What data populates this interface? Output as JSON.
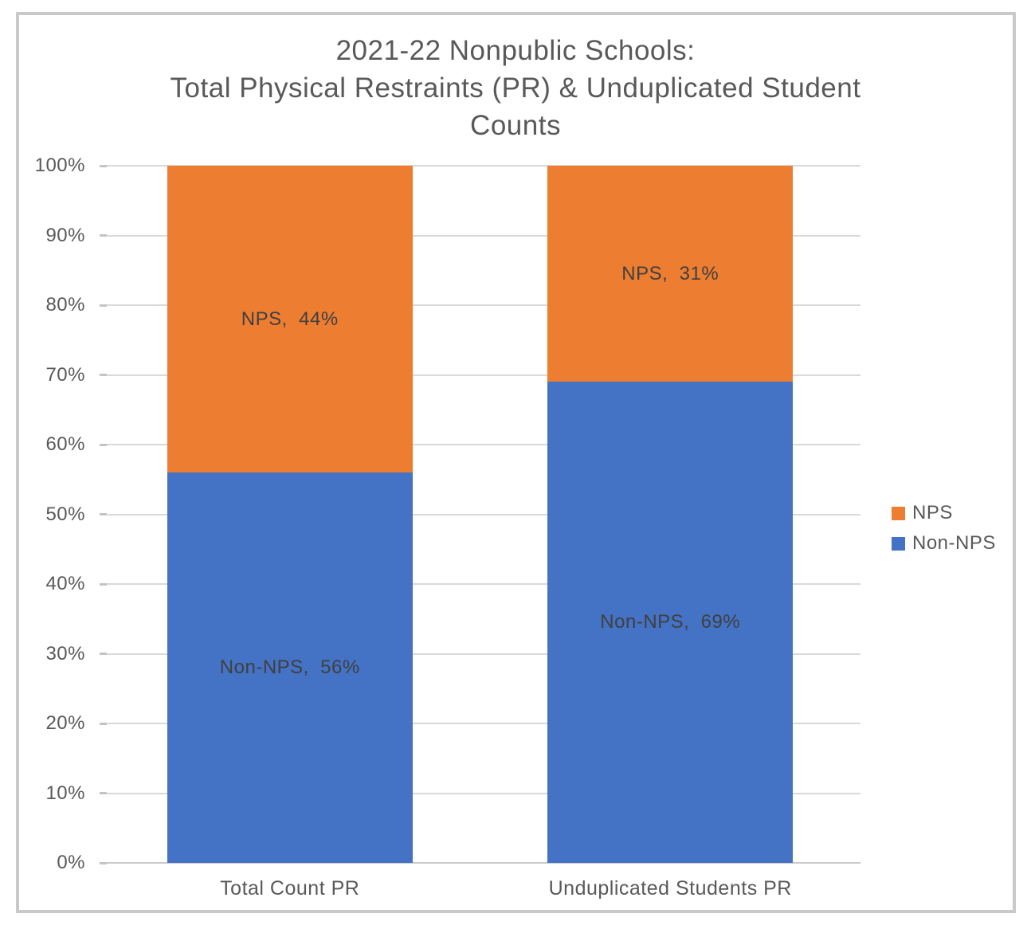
{
  "title": {
    "lines": [
      "2021-22 Nonpublic Schools:",
      "Total Physical Restraints (PR) & Unduplicated Student",
      "Counts"
    ]
  },
  "chart_data": {
    "type": "bar",
    "subtype": "stacked-100-percent-column",
    "title": "2021-22 Nonpublic Schools: Total Physical Restraints (PR) & Unduplicated Student Counts",
    "categories": [
      "Total Count PR",
      "Unduplicated Students PR"
    ],
    "series": [
      {
        "name": "Non-NPS",
        "color": "#4472c4",
        "values": [
          56,
          69
        ],
        "data_labels": [
          "Non-NPS,  56%",
          "Non-NPS,  69%"
        ]
      },
      {
        "name": "NPS",
        "color": "#ed7d31",
        "values": [
          44,
          31
        ],
        "data_labels": [
          "NPS,  44%",
          "NPS,  31%"
        ]
      }
    ],
    "y_axis": {
      "min": 0,
      "max": 100,
      "step": 10,
      "format": "percent",
      "tick_labels": [
        "0%",
        "10%",
        "20%",
        "30%",
        "40%",
        "50%",
        "60%",
        "70%",
        "80%",
        "90%",
        "100%"
      ]
    },
    "x_axis": {
      "labels": [
        "Total Count PR",
        "Unduplicated Students PR"
      ]
    },
    "grid": true,
    "legend": {
      "position": "right",
      "entries": [
        {
          "label": "NPS",
          "color": "#ed7d31"
        },
        {
          "label": "Non-NPS",
          "color": "#4472c4"
        }
      ]
    },
    "colors": {
      "gridline": "#d9d9d9",
      "axis_line": "#c9c9c9",
      "frame_border": "#c9c9c9",
      "title_text": "#595959",
      "axis_text": "#595959",
      "data_label_text": "#404040"
    }
  }
}
